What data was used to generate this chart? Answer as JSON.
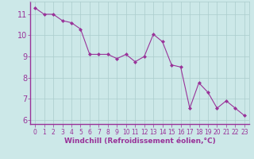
{
  "x": [
    0,
    1,
    2,
    3,
    4,
    5,
    6,
    7,
    8,
    9,
    10,
    11,
    12,
    13,
    14,
    15,
    16,
    17,
    18,
    19,
    20,
    21,
    22,
    23
  ],
  "y": [
    11.3,
    11.0,
    11.0,
    10.7,
    10.6,
    10.3,
    9.1,
    9.1,
    9.1,
    8.9,
    9.1,
    8.75,
    9.0,
    10.05,
    9.7,
    8.6,
    8.5,
    6.55,
    7.75,
    7.3,
    6.55,
    6.9,
    6.55,
    6.2
  ],
  "line_color": "#993399",
  "marker": "D",
  "marker_size": 2,
  "bg_color": "#cce8e8",
  "grid_color": "#aacccc",
  "xlabel": "Windchill (Refroidissement éolien,°C)",
  "xlabel_color": "#993399",
  "xlabel_fontsize": 6.5,
  "tick_color": "#993399",
  "ytick_fontsize": 7,
  "xtick_fontsize": 5.5,
  "ylim": [
    5.8,
    11.6
  ],
  "yticks": [
    6,
    7,
    8,
    9,
    10,
    11
  ],
  "xticks": [
    0,
    1,
    2,
    3,
    4,
    5,
    6,
    7,
    8,
    9,
    10,
    11,
    12,
    13,
    14,
    15,
    16,
    17,
    18,
    19,
    20,
    21,
    22,
    23
  ]
}
